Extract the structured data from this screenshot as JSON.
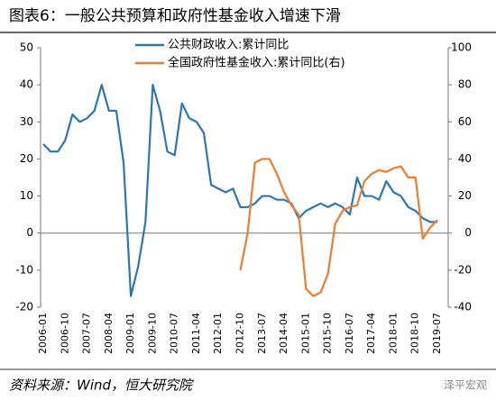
{
  "title": "图表6：一般公共预算和政府性基金收入增速下滑",
  "source": "资料来源：Wind，恒大研究院",
  "watermark": "泽平宏观",
  "chart_data": {
    "type": "line",
    "categories": [
      "2006-01",
      null,
      null,
      "2006-10",
      null,
      null,
      "2007-07",
      null,
      null,
      "2008-04",
      null,
      null,
      "2009-01",
      null,
      null,
      "2009-10",
      null,
      null,
      "2010-07",
      null,
      null,
      "2011-04",
      null,
      null,
      "2012-01",
      null,
      null,
      "2012-10",
      null,
      null,
      "2013-07",
      null,
      null,
      "2014-04",
      null,
      null,
      "2015-01",
      null,
      null,
      "2015-10",
      null,
      null,
      "2016-07",
      null,
      null,
      "2017-04",
      null,
      null,
      "2018-01",
      null,
      null,
      "2018-10",
      null,
      null,
      "2019-07"
    ],
    "series": [
      {
        "name": "公共财政收入:累计同比",
        "color": "#2e75b6",
        "values": [
          24,
          22,
          22,
          25,
          32,
          30,
          31,
          33,
          40,
          33,
          33,
          19,
          -17,
          -9,
          3,
          40,
          33,
          22,
          21,
          35,
          31,
          30,
          27,
          13,
          12,
          11,
          12,
          7,
          7,
          8,
          10,
          10,
          9,
          9,
          8,
          4,
          6,
          7,
          8,
          7,
          8,
          7,
          5,
          15,
          10,
          10,
          9,
          14,
          11,
          10,
          7,
          6,
          4,
          3,
          3
        ]
      },
      {
        "name": "全国政府性基金收入:累计同比(右)",
        "color": "#ed7d31",
        "axis": "y2",
        "values": [
          null,
          null,
          null,
          null,
          null,
          null,
          null,
          null,
          null,
          null,
          null,
          null,
          null,
          null,
          null,
          null,
          null,
          null,
          null,
          null,
          null,
          null,
          null,
          null,
          null,
          null,
          null,
          -20,
          0,
          38,
          40,
          40,
          32,
          22,
          15,
          10,
          -30,
          -34,
          -32,
          -22,
          5,
          12,
          14,
          15,
          28,
          32,
          34,
          33,
          35,
          36,
          30,
          30,
          -3,
          3,
          7
        ]
      }
    ],
    "ylim": [
      -20,
      50
    ],
    "yticks": [
      -20,
      -10,
      0,
      10,
      20,
      30,
      40,
      50
    ],
    "y2lim": [
      -40,
      100
    ],
    "y2ticks": [
      -40,
      -20,
      0,
      20,
      40,
      60,
      80,
      100
    ]
  }
}
